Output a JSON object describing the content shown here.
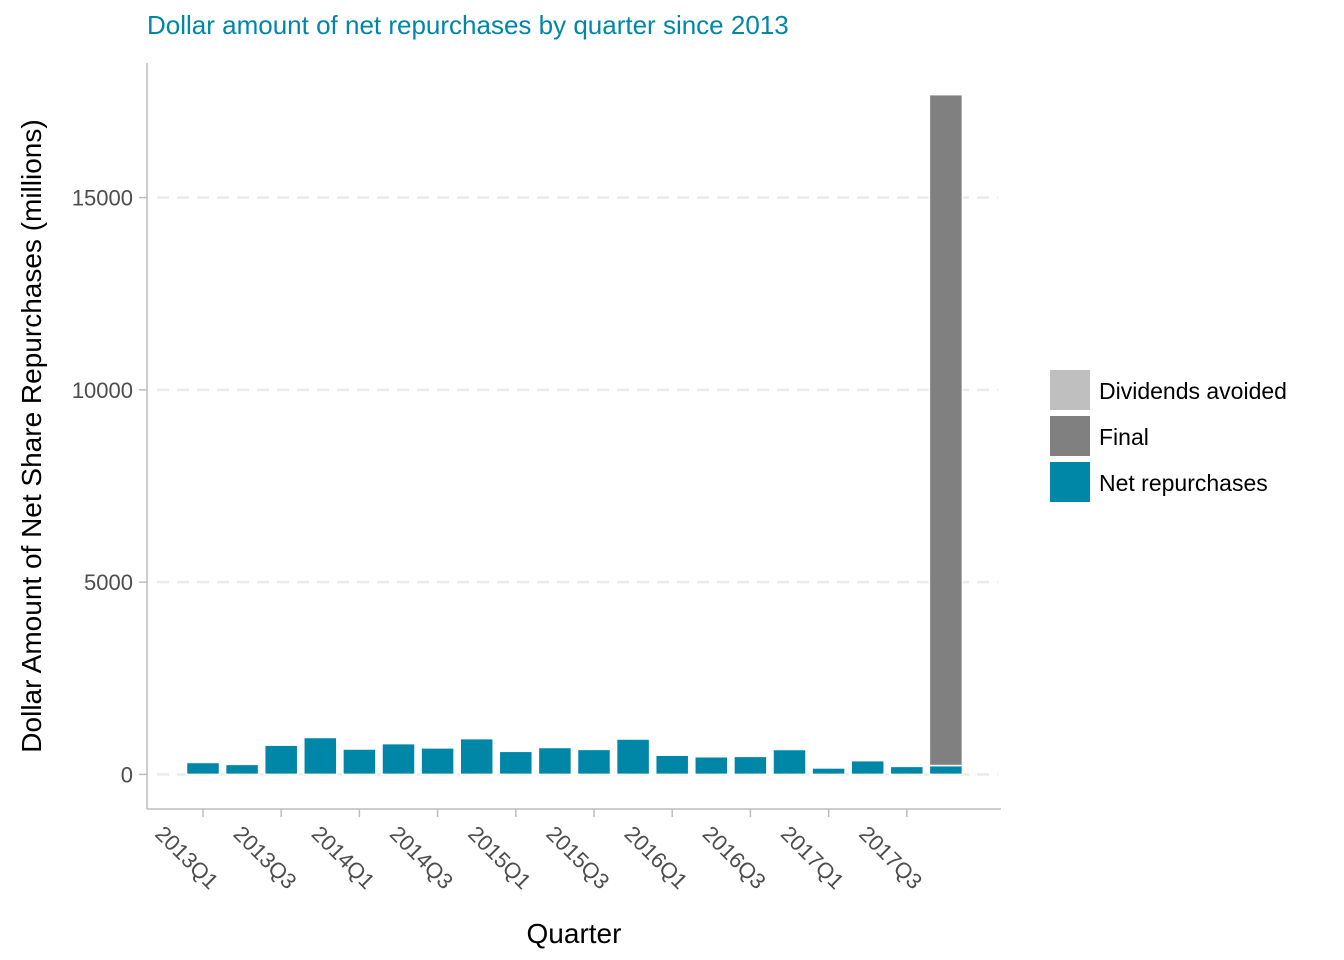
{
  "chart_data": {
    "type": "bar",
    "stacked": true,
    "title": "Dollar amount of net repurchases by quarter since 2013",
    "xlabel": "Quarter",
    "ylabel": "Dollar Amount of Net Share Repurchases (millions)",
    "ylim": [
      -900,
      18500
    ],
    "yticks": [
      0,
      5000,
      10000,
      15000
    ],
    "grid": "horizontal dashed",
    "legend_position": "right",
    "categories": [
      "2013Q1",
      "2013Q2",
      "2013Q3",
      "2013Q4",
      "2014Q1",
      "2014Q2",
      "2014Q3",
      "2014Q4",
      "2015Q1",
      "2015Q2",
      "2015Q3",
      "2015Q4",
      "2016Q1",
      "2016Q2",
      "2016Q3",
      "2016Q4",
      "2017Q1",
      "2017Q2",
      "2017Q3",
      "2017Q4"
    ],
    "xtick_labels": [
      "2013Q1",
      "2013Q3",
      "2014Q1",
      "2014Q3",
      "2015Q1",
      "2015Q3",
      "2016Q1",
      "2016Q3",
      "2017Q1",
      "2017Q3"
    ],
    "series": [
      {
        "name": "Net repurchases",
        "color": "#0087a8",
        "values": [
          310,
          260,
          760,
          960,
          660,
          800,
          690,
          930,
          600,
          700,
          650,
          920,
          500,
          460,
          470,
          650,
          170,
          360,
          210,
          230
        ]
      },
      {
        "name": "Final",
        "color": "#808080",
        "values": [
          0,
          0,
          0,
          0,
          0,
          0,
          0,
          0,
          0,
          0,
          0,
          0,
          0,
          0,
          0,
          0,
          0,
          0,
          0,
          17450
        ]
      },
      {
        "name": "Dividends avoided",
        "color": "#bfbfbf",
        "values": [
          0,
          0,
          0,
          0,
          0,
          0,
          0,
          0,
          0,
          0,
          0,
          0,
          40,
          40,
          40,
          40,
          40,
          40,
          40,
          40
        ]
      }
    ],
    "legend_order": [
      "Dividends avoided",
      "Final",
      "Net repurchases"
    ],
    "title_color": "#0087a8"
  }
}
